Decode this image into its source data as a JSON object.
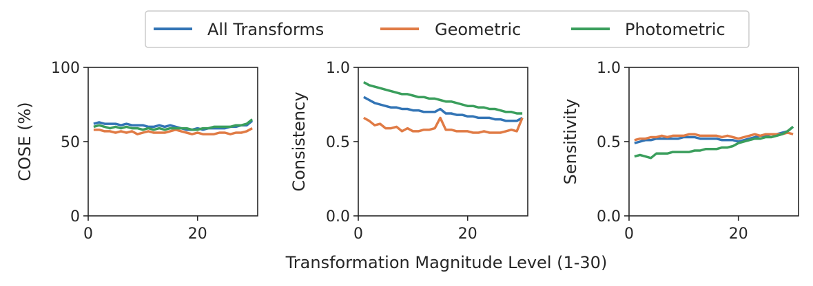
{
  "figure": {
    "xlabel": "Transformation Magnitude Level (1-30)"
  },
  "legend": {
    "placement": "top-center",
    "entries": [
      {
        "label": "All Transforms",
        "color": "#3274b5"
      },
      {
        "label": "Geometric",
        "color": "#e07b45"
      },
      {
        "label": "Photometric",
        "color": "#3a9e5c"
      }
    ]
  },
  "chart_data": [
    {
      "type": "line",
      "title": "",
      "xlabel": "",
      "ylabel": "COSE (%)",
      "xlim": [
        0,
        31
      ],
      "ylim": [
        0,
        100
      ],
      "xticks": [
        0,
        20
      ],
      "xtick_labels": [
        "0",
        "20"
      ],
      "yticks": [
        0,
        50,
        100
      ],
      "ytick_labels": [
        "0",
        "50",
        "100"
      ],
      "grid": false,
      "x": [
        1,
        2,
        3,
        4,
        5,
        6,
        7,
        8,
        9,
        10,
        11,
        12,
        13,
        14,
        15,
        16,
        17,
        18,
        19,
        20,
        21,
        22,
        23,
        24,
        25,
        26,
        27,
        28,
        29,
        30
      ],
      "series": [
        {
          "name": "All Transforms",
          "color": "#3274b5",
          "values": [
            62,
            63,
            62,
            62,
            62,
            61,
            62,
            61,
            61,
            61,
            60,
            60,
            61,
            60,
            61,
            60,
            59,
            58,
            58,
            59,
            58,
            59,
            59,
            59,
            59,
            60,
            60,
            61,
            61,
            64
          ]
        },
        {
          "name": "Geometric",
          "color": "#e07b45",
          "values": [
            58,
            58,
            57,
            57,
            56,
            57,
            56,
            57,
            55,
            56,
            57,
            56,
            56,
            56,
            57,
            58,
            57,
            56,
            55,
            56,
            55,
            55,
            55,
            56,
            56,
            55,
            56,
            56,
            57,
            59
          ]
        },
        {
          "name": "Photometric",
          "color": "#3a9e5c",
          "values": [
            60,
            61,
            60,
            59,
            60,
            59,
            60,
            59,
            59,
            58,
            59,
            58,
            59,
            58,
            59,
            59,
            59,
            59,
            58,
            58,
            59,
            59,
            60,
            60,
            60,
            60,
            61,
            61,
            62,
            65
          ]
        }
      ]
    },
    {
      "type": "line",
      "title": "",
      "xlabel": "",
      "ylabel": "Consistency",
      "xlim": [
        0,
        31
      ],
      "ylim": [
        0,
        1
      ],
      "xticks": [
        0,
        20
      ],
      "xtick_labels": [
        "0",
        "20"
      ],
      "yticks": [
        0,
        0.5,
        1
      ],
      "ytick_labels": [
        "0.0",
        "0.5",
        "1.0"
      ],
      "grid": false,
      "x": [
        1,
        2,
        3,
        4,
        5,
        6,
        7,
        8,
        9,
        10,
        11,
        12,
        13,
        14,
        15,
        16,
        17,
        18,
        19,
        20,
        21,
        22,
        23,
        24,
        25,
        26,
        27,
        28,
        29,
        30
      ],
      "series": [
        {
          "name": "All Transforms",
          "color": "#3274b5",
          "values": [
            0.8,
            0.78,
            0.76,
            0.75,
            0.74,
            0.73,
            0.73,
            0.72,
            0.72,
            0.71,
            0.71,
            0.7,
            0.7,
            0.7,
            0.72,
            0.69,
            0.69,
            0.68,
            0.68,
            0.67,
            0.67,
            0.66,
            0.66,
            0.66,
            0.65,
            0.65,
            0.64,
            0.64,
            0.64,
            0.66
          ]
        },
        {
          "name": "Geometric",
          "color": "#e07b45",
          "values": [
            0.66,
            0.64,
            0.61,
            0.62,
            0.59,
            0.59,
            0.6,
            0.57,
            0.59,
            0.57,
            0.57,
            0.58,
            0.58,
            0.59,
            0.66,
            0.58,
            0.58,
            0.57,
            0.57,
            0.57,
            0.56,
            0.56,
            0.57,
            0.56,
            0.56,
            0.56,
            0.57,
            0.58,
            0.57,
            0.66
          ]
        },
        {
          "name": "Photometric",
          "color": "#3a9e5c",
          "values": [
            0.9,
            0.88,
            0.87,
            0.86,
            0.85,
            0.84,
            0.83,
            0.82,
            0.82,
            0.81,
            0.8,
            0.8,
            0.79,
            0.79,
            0.78,
            0.77,
            0.77,
            0.76,
            0.75,
            0.74,
            0.74,
            0.73,
            0.73,
            0.72,
            0.72,
            0.71,
            0.7,
            0.7,
            0.69,
            0.69
          ]
        }
      ]
    },
    {
      "type": "line",
      "title": "",
      "xlabel": "",
      "ylabel": "Sensitivity",
      "xlim": [
        0,
        31
      ],
      "ylim": [
        0,
        1
      ],
      "xticks": [
        0,
        20
      ],
      "xtick_labels": [
        "0",
        "20"
      ],
      "yticks": [
        0,
        0.5,
        1
      ],
      "ytick_labels": [
        "0.0",
        "0.5",
        "1.0"
      ],
      "grid": false,
      "x": [
        1,
        2,
        3,
        4,
        5,
        6,
        7,
        8,
        9,
        10,
        11,
        12,
        13,
        14,
        15,
        16,
        17,
        18,
        19,
        20,
        21,
        22,
        23,
        24,
        25,
        26,
        27,
        28,
        29,
        30
      ],
      "series": [
        {
          "name": "All Transforms",
          "color": "#3274b5",
          "values": [
            0.49,
            0.5,
            0.51,
            0.51,
            0.52,
            0.52,
            0.52,
            0.52,
            0.52,
            0.53,
            0.53,
            0.53,
            0.52,
            0.52,
            0.52,
            0.52,
            0.51,
            0.51,
            0.51,
            0.5,
            0.51,
            0.52,
            0.53,
            0.54,
            0.54,
            0.55,
            0.55,
            0.56,
            0.57,
            0.6
          ]
        },
        {
          "name": "Geometric",
          "color": "#e07b45",
          "values": [
            0.51,
            0.52,
            0.52,
            0.53,
            0.53,
            0.54,
            0.53,
            0.54,
            0.54,
            0.54,
            0.55,
            0.55,
            0.54,
            0.54,
            0.54,
            0.54,
            0.53,
            0.54,
            0.53,
            0.52,
            0.53,
            0.54,
            0.55,
            0.54,
            0.55,
            0.55,
            0.55,
            0.55,
            0.56,
            0.55
          ]
        },
        {
          "name": "Photometric",
          "color": "#3a9e5c",
          "values": [
            0.4,
            0.41,
            0.4,
            0.39,
            0.42,
            0.42,
            0.42,
            0.43,
            0.43,
            0.43,
            0.43,
            0.44,
            0.44,
            0.45,
            0.45,
            0.45,
            0.46,
            0.46,
            0.47,
            0.49,
            0.5,
            0.51,
            0.52,
            0.52,
            0.53,
            0.53,
            0.54,
            0.55,
            0.57,
            0.6
          ]
        }
      ]
    }
  ]
}
